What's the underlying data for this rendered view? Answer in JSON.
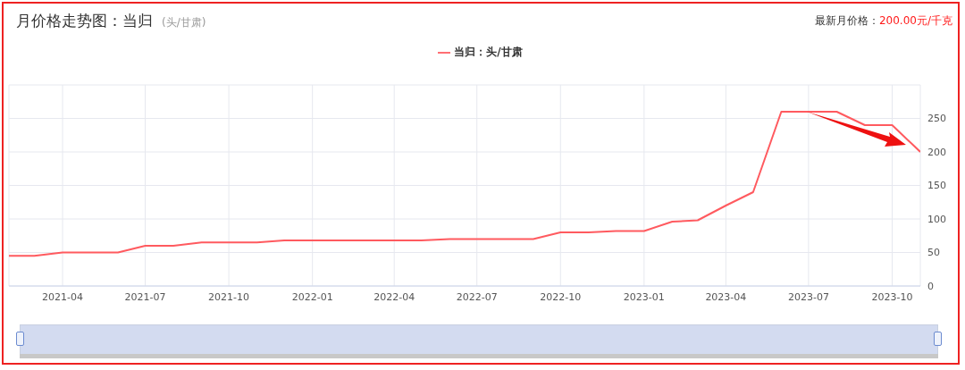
{
  "chart_data": {
    "type": "line",
    "title": "月价格走势图：当归",
    "subtitle": "(头/甘肃)",
    "annotations": [
      "最新月价格：200.00元/千克"
    ],
    "x": [
      "2021-02",
      "2021-03",
      "2021-04",
      "2021-05",
      "2021-06",
      "2021-07",
      "2021-08",
      "2021-09",
      "2021-10",
      "2021-11",
      "2021-12",
      "2022-01",
      "2022-02",
      "2022-03",
      "2022-04",
      "2022-05",
      "2022-06",
      "2022-07",
      "2022-08",
      "2022-09",
      "2022-10",
      "2022-11",
      "2022-12",
      "2023-01",
      "2023-02",
      "2023-03",
      "2023-04",
      "2023-05",
      "2023-06",
      "2023-07",
      "2023-08",
      "2023-09",
      "2023-10",
      "2023-11"
    ],
    "series": [
      {
        "name": "当归：头/甘肃",
        "color": "#ff5a5f",
        "values": [
          45,
          45,
          50,
          50,
          50,
          60,
          60,
          65,
          65,
          65,
          68,
          68,
          68,
          68,
          68,
          68,
          70,
          70,
          70,
          70,
          80,
          80,
          82,
          82,
          96,
          98,
          120,
          140,
          260,
          260,
          260,
          240,
          240,
          200
        ]
      }
    ],
    "xlim": [
      "2021-02",
      "2023-11"
    ],
    "xticks": [
      "2021-04",
      "2021-07",
      "2021-10",
      "2022-01",
      "2022-04",
      "2022-07",
      "2022-10",
      "2023-01",
      "2023-04",
      "2023-07",
      "2023-10"
    ],
    "ylim": [
      0,
      300
    ],
    "yticks": [
      0,
      50,
      100,
      150,
      200,
      250,
      {
        "value": 300,
        "label": null
      }
    ],
    "grid": true,
    "legend": "top",
    "marker": "none",
    "line_style": "solid"
  }
}
